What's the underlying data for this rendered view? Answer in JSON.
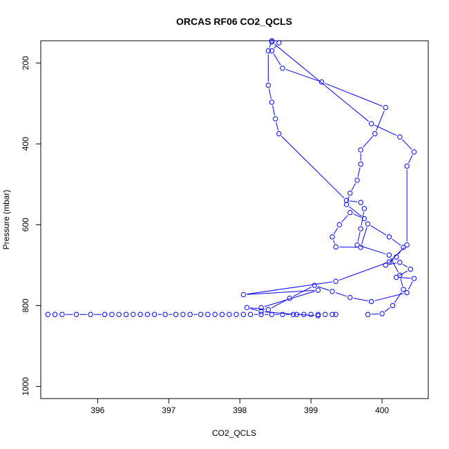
{
  "chart_data": {
    "type": "line",
    "title": "ORCAS RF06 CO2_QCLS",
    "xlabel": "CO2_QCLS",
    "ylabel": "Pressure (mbar)",
    "xlim": [
      395.2,
      400.65
    ],
    "ylim": [
      1030,
      145
    ],
    "y_reversed": true,
    "x_ticks": [
      396,
      397,
      398,
      399,
      400
    ],
    "y_ticks": [
      200,
      400,
      600,
      800,
      1000
    ],
    "grid": false,
    "legend": "none",
    "series_color": "#0000ff",
    "series": [
      {
        "x": [
          398.55,
          398.45,
          398.6,
          399.15,
          400.05,
          399.9,
          399.7,
          399.7,
          399.65,
          399.55,
          399.5,
          399.75,
          399.55,
          399.4,
          399.3,
          399.35,
          399.7,
          399.8,
          400.1,
          400.3,
          400.2,
          400.05,
          400.25,
          400.4,
          400.2,
          400.45,
          400.35,
          399.85,
          399.55,
          399.3,
          399.05,
          398.7,
          398.4,
          398.1,
          398.3,
          398.8,
          399.1
        ],
        "y": [
          150,
          170,
          213,
          247,
          310,
          375,
          415,
          450,
          490,
          522,
          550,
          585,
          570,
          600,
          630,
          655,
          656,
          598,
          630,
          656,
          680,
          700,
          693,
          710,
          730,
          733,
          768,
          790,
          780,
          765,
          750,
          782,
          810,
          805,
          815,
          822,
          825
        ]
      },
      {
        "x": [
          398.45,
          398.4,
          398.4,
          398.45,
          398.5,
          398.55,
          399.5,
          399.7,
          399.75,
          399.7,
          399.65,
          400.1,
          400.25,
          400.3,
          400.15,
          400.0,
          399.8
        ],
        "y": [
          145,
          170,
          255,
          297,
          338,
          375,
          540,
          545,
          560,
          610,
          650,
          675,
          725,
          760,
          800,
          820,
          822
        ]
      },
      {
        "x": [
          398.45,
          399.85,
          400.25,
          400.45,
          400.35,
          400.35,
          400.1,
          399.35,
          398.05,
          399.1,
          398.3
        ],
        "y": [
          148,
          350,
          383,
          420,
          455,
          650,
          692,
          740,
          773,
          762,
          805
        ]
      },
      {
        "x": [
          395.3,
          395.4,
          395.5,
          395.7,
          395.9,
          396.1,
          396.2,
          396.3,
          396.4,
          396.5,
          396.6,
          396.7,
          396.8,
          396.95,
          397.1,
          397.2,
          397.3,
          397.45,
          397.55,
          397.65,
          397.75,
          397.85,
          397.95,
          398.05,
          398.15,
          398.3,
          398.45,
          398.6,
          398.75,
          398.9,
          399.0,
          399.1,
          399.2,
          399.3,
          399.35
        ],
        "y": [
          822,
          822,
          822,
          822,
          822,
          822,
          822,
          822,
          822,
          822,
          822,
          822,
          822,
          822,
          822,
          822,
          822,
          822,
          822,
          822,
          822,
          822,
          822,
          822,
          822,
          822,
          822,
          822,
          822,
          822,
          822,
          822,
          822,
          822,
          822
        ]
      }
    ]
  }
}
